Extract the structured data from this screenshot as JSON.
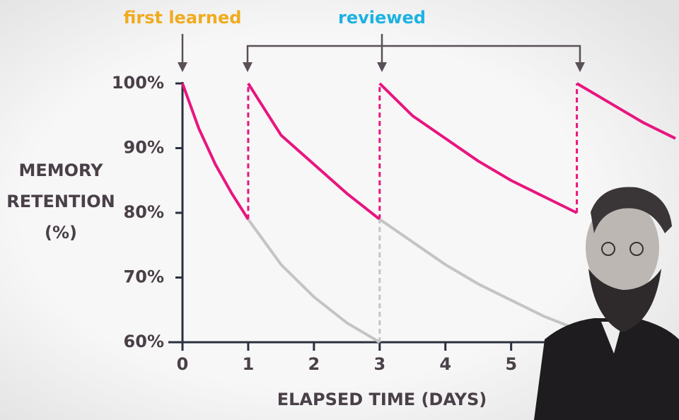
{
  "chart_data": {
    "type": "line",
    "annotations": [
      "first learned",
      "reviewed"
    ],
    "annotation_colors": [
      "#f0ab1e",
      "#1cb2e2"
    ],
    "y_label": [
      "MEMORY",
      "RETENTION",
      "(%)"
    ],
    "x_label": "ELAPSED TIME (DAYS)",
    "xlim": [
      0,
      7.5
    ],
    "xticks": [
      0,
      1,
      2,
      3,
      4,
      5
    ],
    "ylim": [
      60,
      100
    ],
    "yticks": [
      {
        "value": 100,
        "label": "100%"
      },
      {
        "value": 90,
        "label": "90%"
      },
      {
        "value": 80,
        "label": "80%"
      },
      {
        "value": 70,
        "label": "70%"
      },
      {
        "value": 60,
        "label": "60%"
      }
    ],
    "series": [
      {
        "color": "#e8157f",
        "x": [
          0,
          0.25,
          0.5,
          0.75,
          1,
          null,
          1,
          1.5,
          2,
          2.5,
          3,
          null,
          3,
          3.5,
          4,
          4.5,
          5,
          5.5,
          6,
          null,
          6,
          6.5,
          7,
          7.5
        ],
        "values": [
          100,
          93,
          87.5,
          83,
          79,
          null,
          100,
          92,
          87.5,
          83,
          79,
          null,
          100,
          95,
          91.5,
          88,
          85,
          82.5,
          80,
          null,
          100,
          97,
          94,
          91.5
        ]
      },
      {
        "color": "#c4c4c4",
        "x": [
          1,
          1.5,
          2,
          2.5,
          3,
          null,
          3,
          3.5,
          4,
          4.5,
          5,
          5.5,
          6
        ],
        "values": [
          79,
          72,
          67,
          63,
          60,
          null,
          79,
          75.5,
          72,
          69,
          66.5,
          64,
          62
        ]
      }
    ]
  }
}
